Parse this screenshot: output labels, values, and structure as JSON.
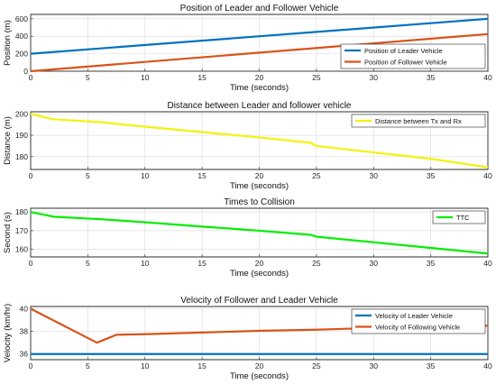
{
  "chart_data": [
    {
      "type": "line",
      "title": "Position of Leader and Follower Vehicle",
      "xlabel": "Time (seconds)",
      "ylabel": "Position (m)",
      "xlim": [
        0,
        40
      ],
      "ylim": [
        0,
        650
      ],
      "x_ticks": [
        "0",
        "5",
        "10",
        "15",
        "20",
        "25",
        "30",
        "35",
        "40"
      ],
      "y_ticks": [
        "0",
        "200",
        "400",
        "600"
      ],
      "grid": true,
      "legend_position": "bottom-right",
      "series": [
        {
          "name": "Position of Leader Vehicle",
          "color": "#0072bd",
          "x": [
            0,
            40
          ],
          "y": [
            200,
            600
          ]
        },
        {
          "name": "Position of Follower Vehicle",
          "color": "#d95319",
          "x": [
            0,
            40
          ],
          "y": [
            0,
            425
          ]
        }
      ]
    },
    {
      "type": "line",
      "title": "Distance between Leader and follower vehicle",
      "xlabel": "Time (seconds)",
      "ylabel": "Distance (m)",
      "xlim": [
        0,
        40
      ],
      "ylim": [
        174,
        201
      ],
      "x_ticks": [
        "0",
        "5",
        "10",
        "15",
        "20",
        "25",
        "30",
        "35",
        "40"
      ],
      "y_ticks": [
        "180",
        "190",
        "200"
      ],
      "grid": true,
      "legend_position": "top-right",
      "series": [
        {
          "name": "Distance between Tx and Rx",
          "color": "#f2f20a",
          "x": [
            0,
            2,
            5,
            6,
            10,
            15,
            20,
            24.5,
            25,
            30,
            35,
            40
          ],
          "y": [
            200,
            197.5,
            196.5,
            196.2,
            194,
            191.5,
            189,
            186.5,
            185,
            182,
            179,
            175
          ]
        }
      ]
    },
    {
      "type": "line",
      "title": "Times to Collision",
      "xlabel": "Time (seconds)",
      "ylabel": "Second (s)",
      "xlim": [
        0,
        40
      ],
      "ylim": [
        156,
        182
      ],
      "x_ticks": [
        "0",
        "5",
        "10",
        "15",
        "20",
        "25",
        "30",
        "35",
        "40"
      ],
      "y_ticks": [
        "160",
        "170",
        "180"
      ],
      "grid": true,
      "legend_position": "top-right",
      "series": [
        {
          "name": "TTC",
          "color": "#00ee00",
          "x": [
            0,
            2,
            5,
            6,
            10,
            15,
            20,
            24.5,
            25,
            30,
            35,
            40
          ],
          "y": [
            180,
            177.5,
            176.5,
            176.2,
            174.5,
            172.2,
            170,
            167.8,
            166.8,
            163.8,
            160.8,
            157.8
          ]
        }
      ]
    },
    {
      "type": "line",
      "title": "Velocity of Follower and Leader Vehicle",
      "xlabel": "Time (seconds)",
      "ylabel": "Velocity (km/hr)",
      "xlim": [
        0,
        40
      ],
      "ylim": [
        35.5,
        40.2
      ],
      "x_ticks": [
        "0",
        "5",
        "10",
        "15",
        "20",
        "25",
        "30",
        "35",
        "40"
      ],
      "y_ticks": [
        "36",
        "38",
        "40"
      ],
      "grid": true,
      "legend_position": "top-right",
      "series": [
        {
          "name": "Velocity of Leader Vehicle",
          "color": "#0072bd",
          "x": [
            0,
            40
          ],
          "y": [
            36,
            36
          ]
        },
        {
          "name": "Velocity of Following Vehicle",
          "color": "#d95319",
          "x": [
            0,
            5.8,
            7.5,
            10,
            15,
            20,
            25,
            30,
            35,
            40
          ],
          "y": [
            40,
            37,
            37.7,
            37.75,
            37.9,
            38.05,
            38.15,
            38.3,
            38.4,
            38.5
          ]
        }
      ]
    }
  ]
}
